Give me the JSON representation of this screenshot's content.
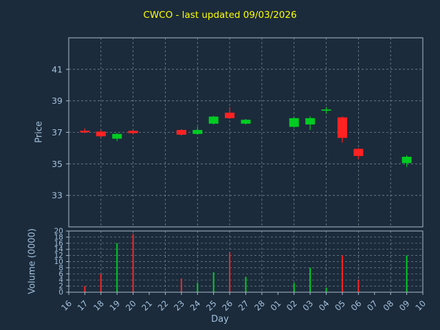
{
  "chart_data": {
    "type": "candlestick",
    "title": "CWCO - last updated 09/03/2026",
    "xlabel": "Day",
    "ylabel_price": "Price",
    "ylabel_volume": "Volume (0000)",
    "x_categories": [
      "16",
      "17",
      "18",
      "19",
      "20",
      "21",
      "22",
      "23",
      "24",
      "25",
      "26",
      "27",
      "28",
      "01",
      "02",
      "03",
      "04",
      "05",
      "06",
      "07",
      "08",
      "09",
      "10"
    ],
    "price_ticks": [
      33,
      35,
      37,
      39,
      41
    ],
    "price_range": [
      31,
      43
    ],
    "volume_ticks": [
      0,
      2,
      4,
      6,
      8,
      10,
      12,
      14,
      16,
      18,
      20
    ],
    "volume_range": [
      0,
      20
    ],
    "up_color": "#00cc22",
    "down_color": "#ff2222",
    "colors": {
      "background": "#1b2b3b",
      "title": "#ffff00",
      "tick": "#a3c0dc",
      "grid": "#76858f",
      "spine": "#a9bccd"
    },
    "candles": [
      {
        "day": "17",
        "open": 37.1,
        "high": 37.25,
        "low": 36.95,
        "close": 37.0
      },
      {
        "day": "18",
        "open": 37.05,
        "high": 37.15,
        "low": 36.7,
        "close": 36.75
      },
      {
        "day": "19",
        "open": 36.6,
        "high": 36.95,
        "low": 36.45,
        "close": 36.9
      },
      {
        "day": "20",
        "open": 37.1,
        "high": 37.15,
        "low": 36.85,
        "close": 36.95
      },
      {
        "day": "23",
        "open": 37.15,
        "high": 37.2,
        "low": 36.8,
        "close": 36.85
      },
      {
        "day": "24",
        "open": 36.9,
        "high": 37.35,
        "low": 36.85,
        "close": 37.15
      },
      {
        "day": "25",
        "open": 37.55,
        "high": 38.05,
        "low": 37.5,
        "close": 38.0
      },
      {
        "day": "26",
        "open": 38.25,
        "high": 38.6,
        "low": 37.85,
        "close": 37.9
      },
      {
        "day": "27",
        "open": 37.55,
        "high": 37.85,
        "low": 37.5,
        "close": 37.8
      },
      {
        "day": "02",
        "open": 37.35,
        "high": 37.95,
        "low": 37.3,
        "close": 37.9
      },
      {
        "day": "03",
        "open": 37.5,
        "high": 38.0,
        "low": 37.15,
        "close": 37.9
      },
      {
        "day": "04",
        "open": 38.4,
        "high": 38.6,
        "low": 38.2,
        "close": 38.45
      },
      {
        "day": "05",
        "open": 37.95,
        "high": 38.0,
        "low": 36.35,
        "close": 36.65
      },
      {
        "day": "06",
        "open": 35.95,
        "high": 36.0,
        "low": 35.3,
        "close": 35.5
      },
      {
        "day": "09",
        "open": 35.05,
        "high": 35.55,
        "low": 34.8,
        "close": 35.45
      }
    ],
    "volumes": [
      {
        "day": "17",
        "value": 2,
        "dir": "down"
      },
      {
        "day": "18",
        "value": 6,
        "dir": "down"
      },
      {
        "day": "19",
        "value": 16,
        "dir": "up"
      },
      {
        "day": "20",
        "value": 19,
        "dir": "down"
      },
      {
        "day": "23",
        "value": 4.5,
        "dir": "down"
      },
      {
        "day": "24",
        "value": 3,
        "dir": "up"
      },
      {
        "day": "25",
        "value": 6.5,
        "dir": "up"
      },
      {
        "day": "26",
        "value": 13,
        "dir": "down"
      },
      {
        "day": "27",
        "value": 5,
        "dir": "up"
      },
      {
        "day": "02",
        "value": 3,
        "dir": "up"
      },
      {
        "day": "03",
        "value": 8,
        "dir": "up"
      },
      {
        "day": "04",
        "value": 1.5,
        "dir": "up"
      },
      {
        "day": "05",
        "value": 12,
        "dir": "down"
      },
      {
        "day": "06",
        "value": 4,
        "dir": "down"
      },
      {
        "day": "09",
        "value": 12,
        "dir": "up"
      }
    ]
  }
}
